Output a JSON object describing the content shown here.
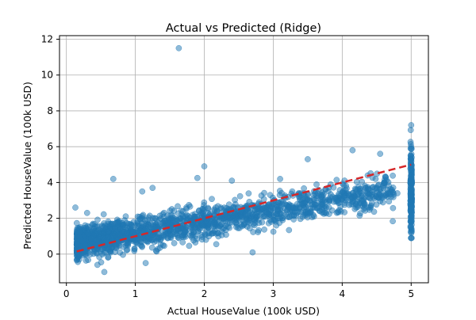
{
  "colors": {
    "points": "#1f77b4",
    "reference_line": "#d62728",
    "grid": "#b0b0b0",
    "axes": "#000000"
  },
  "chart_data": {
    "type": "scatter",
    "title": "Actual vs Predicted (Ridge)",
    "xlabel": "Actual HouseValue (100k USD)",
    "ylabel": "Predicted HouseValue (100k USD)",
    "xlim": [
      -0.1,
      5.25
    ],
    "ylim": [
      -1.6,
      12.2
    ],
    "xticks": [
      0,
      1,
      2,
      3,
      4,
      5
    ],
    "yticks": [
      0,
      2,
      4,
      6,
      8,
      10,
      12
    ],
    "grid": true,
    "legend": "none",
    "marker_alpha": 0.5,
    "series": [
      {
        "kind": "points",
        "x_range": [
          0.15,
          5.0
        ],
        "trend": {
          "slope": 0.62,
          "intercept": 0.55
        },
        "notable_points": [
          {
            "x": 1.63,
            "y": 11.5
          },
          {
            "x": 0.68,
            "y": 4.2
          },
          {
            "x": 1.1,
            "y": 3.5
          },
          {
            "x": 1.25,
            "y": 3.7
          },
          {
            "x": 1.9,
            "y": 4.25
          },
          {
            "x": 2.0,
            "y": 4.9
          },
          {
            "x": 2.4,
            "y": 4.1
          },
          {
            "x": 3.1,
            "y": 4.2
          },
          {
            "x": 3.5,
            "y": 5.3
          },
          {
            "x": 4.15,
            "y": 5.8
          },
          {
            "x": 4.55,
            "y": 5.6
          },
          {
            "x": 0.55,
            "y": -1.0
          },
          {
            "x": 0.45,
            "y": -0.6
          },
          {
            "x": 1.15,
            "y": -0.5
          },
          {
            "x": 2.7,
            "y": 0.1
          },
          {
            "x": 0.13,
            "y": 2.6
          },
          {
            "x": 0.3,
            "y": 2.3
          },
          {
            "x": 4.8,
            "y": 3.4
          },
          {
            "x": 5.0,
            "y": 7.2
          },
          {
            "x": 5.0,
            "y": 0.9
          }
        ]
      },
      {
        "kind": "reference_line",
        "style": "dashed",
        "x": [
          0.15,
          5.0
        ],
        "y": [
          0.15,
          5.0
        ]
      }
    ]
  }
}
